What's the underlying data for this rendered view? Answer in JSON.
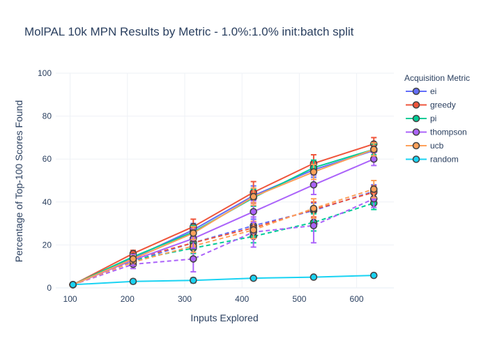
{
  "chart_data": {
    "type": "line",
    "title": "MolPAL 10k MPN Results by Metric - 1.0%:1.0% init:batch split",
    "xlabel": "Inputs Explored",
    "ylabel": "Percentage of Top-100 Scores Found",
    "xlim": [
      75,
      665
    ],
    "ylim": [
      0,
      100
    ],
    "x_ticks": [
      100,
      200,
      300,
      400,
      500,
      600
    ],
    "y_ticks": [
      0,
      20,
      40,
      60,
      80,
      100
    ],
    "grid": true,
    "legend_title": "Acquisition Metric",
    "legend_position": "top-right",
    "x": [
      105,
      210,
      315,
      420,
      525,
      630
    ],
    "series": [
      {
        "name": "ei",
        "color": "#636efa",
        "solid": [
          1.5,
          14.0,
          27.0,
          43.0,
          55.0,
          64.0
        ],
        "solid_err": [
          0.5,
          1.2,
          3.0,
          4.5,
          3.5,
          3.0
        ],
        "dashed": [
          1.5,
          12.5,
          21.0,
          29.0,
          36.0,
          45.0
        ],
        "dashed_err": [
          0.5,
          1.5,
          3.0,
          3.0,
          3.5,
          3.0
        ]
      },
      {
        "name": "greedy",
        "color": "#ef553b",
        "solid": [
          1.5,
          16.0,
          28.5,
          44.5,
          58.0,
          67.0
        ],
        "solid_err": [
          0.5,
          1.5,
          3.5,
          5.0,
          4.0,
          3.0
        ],
        "dashed": [
          1.5,
          13.5,
          21.0,
          28.0,
          36.5,
          44.5
        ],
        "dashed_err": [
          0.5,
          1.5,
          2.5,
          3.0,
          3.5,
          3.0
        ]
      },
      {
        "name": "pi",
        "color": "#00cc96",
        "solid": [
          1.5,
          14.5,
          26.0,
          42.0,
          56.0,
          64.5
        ],
        "solid_err": [
          0.5,
          1.2,
          3.0,
          4.0,
          3.5,
          2.5
        ],
        "dashed": [
          1.5,
          13.0,
          18.5,
          24.0,
          30.5,
          39.5
        ],
        "dashed_err": [
          0.5,
          1.5,
          2.5,
          3.0,
          4.0,
          3.0
        ]
      },
      {
        "name": "thompson",
        "color": "#ab63fa",
        "solid": [
          1.5,
          13.0,
          23.0,
          35.5,
          48.0,
          60.0
        ],
        "solid_err": [
          0.5,
          2.5,
          4.5,
          5.0,
          4.5,
          3.0
        ],
        "dashed": [
          1.5,
          11.0,
          13.5,
          26.0,
          29.0,
          41.5
        ],
        "dashed_err": [
          0.5,
          2.0,
          6.0,
          7.0,
          8.0,
          4.0
        ]
      },
      {
        "name": "ucb",
        "color": "#ffa15a",
        "solid": [
          1.5,
          13.5,
          25.5,
          42.5,
          54.0,
          64.5
        ],
        "solid_err": [
          0.5,
          1.5,
          3.0,
          4.0,
          3.5,
          3.0
        ],
        "dashed": [
          1.5,
          12.0,
          19.5,
          27.0,
          37.0,
          46.0
        ],
        "dashed_err": [
          0.5,
          1.5,
          3.0,
          4.0,
          4.5,
          4.0
        ]
      },
      {
        "name": "random",
        "color": "#19d3f3",
        "solid": [
          1.5,
          3.0,
          3.5,
          4.5,
          5.0,
          5.8
        ],
        "solid_err": [
          1.0,
          1.0,
          1.2,
          0.8,
          0.6,
          0.6
        ],
        "dashed": null,
        "dashed_err": null
      }
    ]
  }
}
